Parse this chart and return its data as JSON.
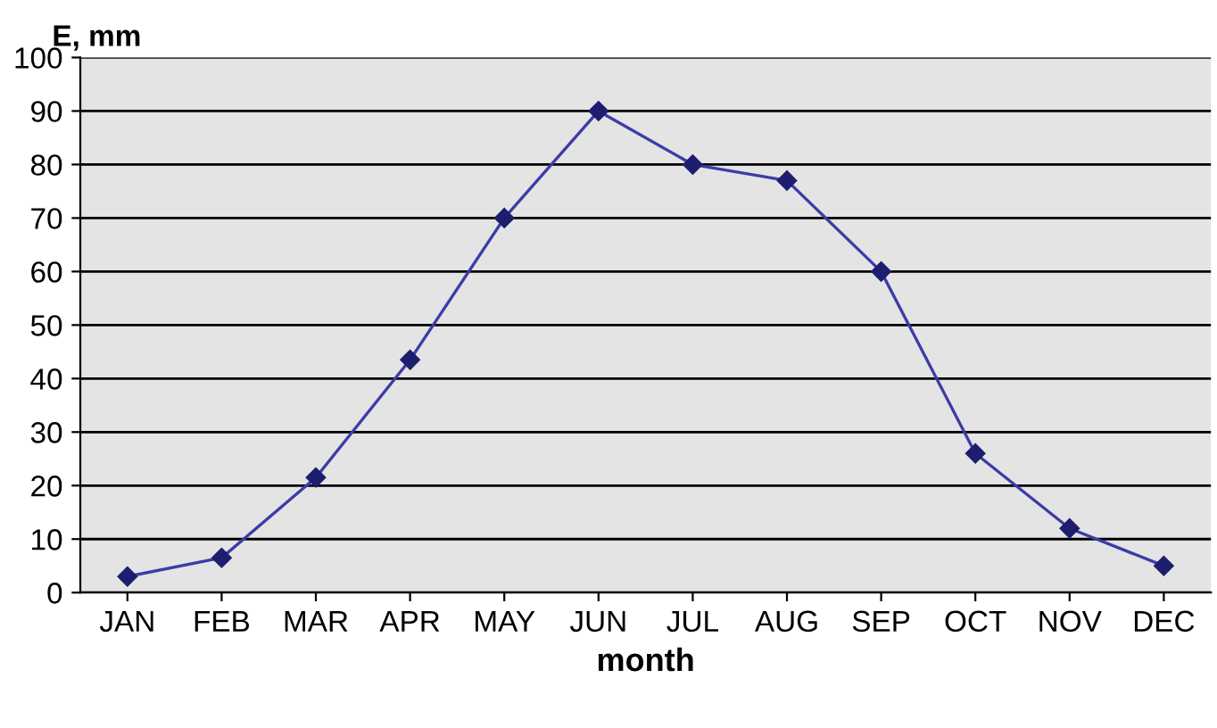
{
  "chart_data": {
    "type": "line",
    "xlabel": "month",
    "ylabel": "E, mm",
    "categories": [
      "JAN",
      "FEB",
      "MAR",
      "APR",
      "MAY",
      "JUN",
      "JUL",
      "AUG",
      "SEP",
      "OCT",
      "NOV",
      "DEC"
    ],
    "series": [
      {
        "color": "#3c3ca8",
        "values": [
          3,
          6.5,
          21.5,
          43.5,
          70,
          90,
          80,
          77,
          60,
          26,
          12,
          5
        ]
      }
    ],
    "ylim": [
      0,
      100
    ],
    "yticks": [
      0,
      10,
      20,
      30,
      40,
      50,
      60,
      70,
      80,
      90,
      100
    ],
    "grid": "y",
    "marker": "diamond",
    "line_style": "solid",
    "legend": false
  }
}
